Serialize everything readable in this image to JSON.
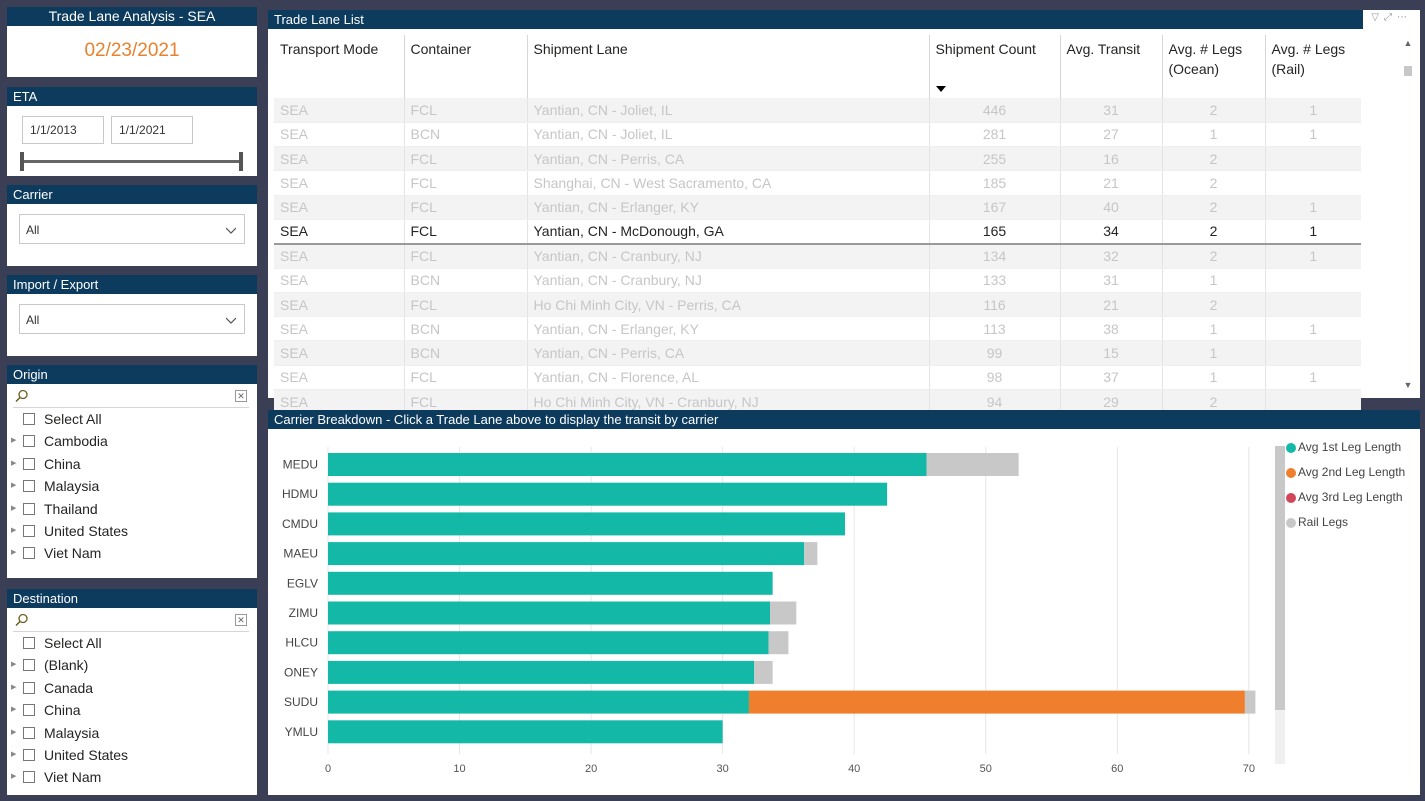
{
  "title": {
    "text": "Trade Lane Analysis - SEA",
    "date": "02/23/2021"
  },
  "eta": {
    "header": "ETA",
    "start": "1/1/2013",
    "end": "1/1/2021"
  },
  "carrier_filter": {
    "header": "Carrier",
    "value": "All"
  },
  "impexp_filter": {
    "header": "Import / Export",
    "value": "All"
  },
  "origin": {
    "header": "Origin",
    "items": [
      "Select All",
      "Cambodia",
      "China",
      "Malaysia",
      "Thailand",
      "United States",
      "Viet Nam"
    ]
  },
  "destination": {
    "header": "Destination",
    "items": [
      "Select All",
      "(Blank)",
      "Canada",
      "China",
      "Malaysia",
      "United States",
      "Viet Nam"
    ]
  },
  "trade_table": {
    "header": "Trade Lane List",
    "columns": [
      "Transport Mode",
      "Container",
      "Shipment Lane",
      "Shipment Count",
      "Avg. Transit",
      "Avg. # Legs (Ocean)",
      "Avg. # Legs (Rail)"
    ],
    "rows": [
      [
        "SEA",
        "FCL",
        "Yantian, CN - Joliet, IL",
        "446",
        "31",
        "2",
        "1"
      ],
      [
        "SEA",
        "BCN",
        "Yantian, CN - Joliet, IL",
        "281",
        "27",
        "1",
        "1"
      ],
      [
        "SEA",
        "FCL",
        "Yantian, CN - Perris, CA",
        "255",
        "16",
        "2",
        ""
      ],
      [
        "SEA",
        "FCL",
        "Shanghai, CN - West Sacramento, CA",
        "185",
        "21",
        "2",
        ""
      ],
      [
        "SEA",
        "FCL",
        "Yantian, CN - Erlanger, KY",
        "167",
        "40",
        "2",
        "1"
      ],
      [
        "SEA",
        "FCL",
        "Yantian, CN - McDonough, GA",
        "165",
        "34",
        "2",
        "1"
      ],
      [
        "SEA",
        "FCL",
        "Yantian, CN - Cranbury, NJ",
        "134",
        "32",
        "2",
        "1"
      ],
      [
        "SEA",
        "BCN",
        "Yantian, CN - Cranbury, NJ",
        "133",
        "31",
        "1",
        ""
      ],
      [
        "SEA",
        "FCL",
        "Ho Chi Minh City, VN - Perris, CA",
        "116",
        "21",
        "2",
        ""
      ],
      [
        "SEA",
        "BCN",
        "Yantian, CN - Erlanger, KY",
        "113",
        "38",
        "1",
        "1"
      ],
      [
        "SEA",
        "BCN",
        "Yantian, CN - Perris, CA",
        "99",
        "15",
        "1",
        ""
      ],
      [
        "SEA",
        "FCL",
        "Yantian, CN - Florence, AL",
        "98",
        "37",
        "1",
        "1"
      ],
      [
        "SEA",
        "FCL",
        "Ho Chi Minh City, VN - Cranbury, NJ",
        "94",
        "29",
        "2",
        ""
      ]
    ],
    "selected_row": 5
  },
  "chart_header": "Carrier Breakdown - Click a Trade Lane above to display the transit by carrier",
  "chart_data": {
    "type": "bar",
    "orientation": "horizontal",
    "stacked": true,
    "categories": [
      "MEDU",
      "HDMU",
      "CMDU",
      "MAEU",
      "EGLV",
      "ZIMU",
      "HLCU",
      "ONEY",
      "SUDU",
      "YMLU"
    ],
    "series": [
      {
        "name": "Avg 1st Leg Length",
        "color": "#14b8a6",
        "values": [
          45.5,
          42.5,
          39.3,
          36.2,
          33.8,
          33.6,
          33.5,
          32.4,
          32.0,
          30.0
        ]
      },
      {
        "name": "Avg 2nd Leg Length",
        "color": "#ef7f2d",
        "values": [
          0,
          0,
          0,
          0,
          0,
          0,
          0,
          0,
          37.7,
          0
        ]
      },
      {
        "name": "Avg 3rd Leg Length",
        "color": "#d2465a",
        "values": [
          0,
          0,
          0,
          0,
          0,
          0,
          0,
          0,
          0,
          0
        ]
      },
      {
        "name": "Rail Legs",
        "color": "#c8c8c8",
        "values": [
          7.0,
          0,
          0,
          1.0,
          0,
          2.0,
          1.5,
          1.4,
          0.8,
          0
        ]
      }
    ],
    "xticks": [
      0,
      10,
      20,
      30,
      40,
      50,
      60,
      70
    ],
    "xlim": [
      0,
      71
    ],
    "grid": true,
    "legend": "right"
  }
}
